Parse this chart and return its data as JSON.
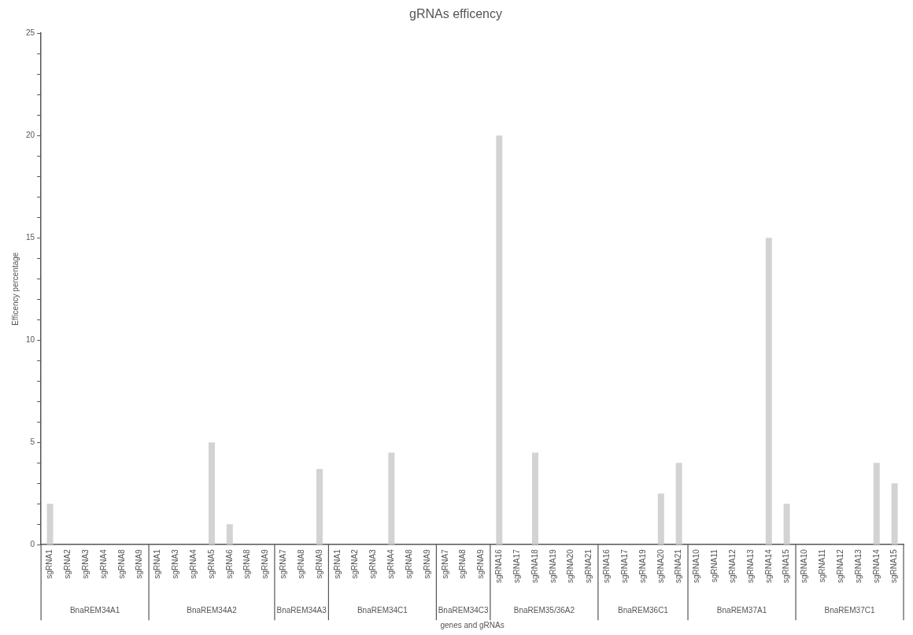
{
  "chart_data": {
    "type": "bar",
    "title": "gRNAs efficency",
    "xlabel": "genes and gRNAs",
    "ylabel": "Efficency percentage",
    "categories": [
      "sgRNA1",
      "sgRNA2",
      "sgRNA3",
      "sgRNA4",
      "sgRNA8",
      "sgRNA9",
      "sgRNA1",
      "sgRNA3",
      "sgRNA4",
      "sgRNA5",
      "sgRNA6",
      "sgRNA8",
      "sgRNA9",
      "sgRNA7",
      "sgRNA8",
      "sgRNA9",
      "sgRNA1",
      "sgRNA2",
      "sgRNA3",
      "sgRNA4",
      "sgRNA8",
      "sgRNA9",
      "sgRNA7",
      "sgRNA8",
      "sgRNA9",
      "sgRNA16",
      "sgRNA17",
      "sgRNA18",
      "sgRNA19",
      "sgRNA20",
      "sgRNA21",
      "sgRNA16",
      "sgRNA17",
      "sgRNA19",
      "sgRNA20",
      "sgRNA21",
      "sgRNA10",
      "sgRNA11",
      "sgRNA12",
      "sgRNA13",
      "sgRNA14",
      "sgRNA15",
      "sgRNA10",
      "sgRNA11",
      "sgRNA12",
      "sgRNA13",
      "sgRNA14",
      "sgRNA15"
    ],
    "values": [
      2,
      0,
      0,
      0,
      0,
      0,
      0,
      0,
      0,
      5,
      1,
      0,
      0,
      0,
      0,
      3.7,
      0,
      0,
      0,
      4.5,
      0,
      0,
      0,
      0,
      0,
      20,
      0,
      4.5,
      0,
      0,
      0,
      0,
      0,
      0,
      2.5,
      4,
      0,
      0,
      0,
      0,
      15,
      2,
      0,
      0,
      0,
      0,
      4,
      3
    ],
    "color": "#d3d3d3",
    "ylim": [
      0,
      25
    ],
    "yticks": [
      0,
      {
        "value": 1,
        "label": null
      },
      {
        "value": 2,
        "label": null
      },
      {
        "value": 3,
        "label": null
      },
      {
        "value": 4,
        "label": null
      },
      5,
      {
        "value": 6,
        "label": null
      },
      {
        "value": 7,
        "label": null
      },
      {
        "value": 8,
        "label": null
      },
      {
        "value": 9,
        "label": null
      },
      10,
      {
        "value": 11,
        "label": null
      },
      {
        "value": 12,
        "label": null
      },
      {
        "value": 13,
        "label": null
      },
      {
        "value": 14,
        "label": null
      },
      15,
      {
        "value": 16,
        "label": null
      },
      {
        "value": 17,
        "label": null
      },
      {
        "value": 18,
        "label": null
      },
      {
        "value": 19,
        "label": null
      },
      20,
      {
        "value": 21,
        "label": null
      },
      {
        "value": 22,
        "label": null
      },
      {
        "value": 23,
        "label": null
      },
      {
        "value": 24,
        "label": null
      },
      25
    ],
    "grid": false,
    "legend": false,
    "annotations": [
      "BnaREM34A1",
      "BnaREM34A2",
      "BnaREM34A3",
      "BnaREM34C1",
      "BnaREM34C3",
      "BnaREM35/36A2",
      "BnaREM36C1",
      "BnaREM37A1",
      "BnaREM37C1"
    ]
  }
}
